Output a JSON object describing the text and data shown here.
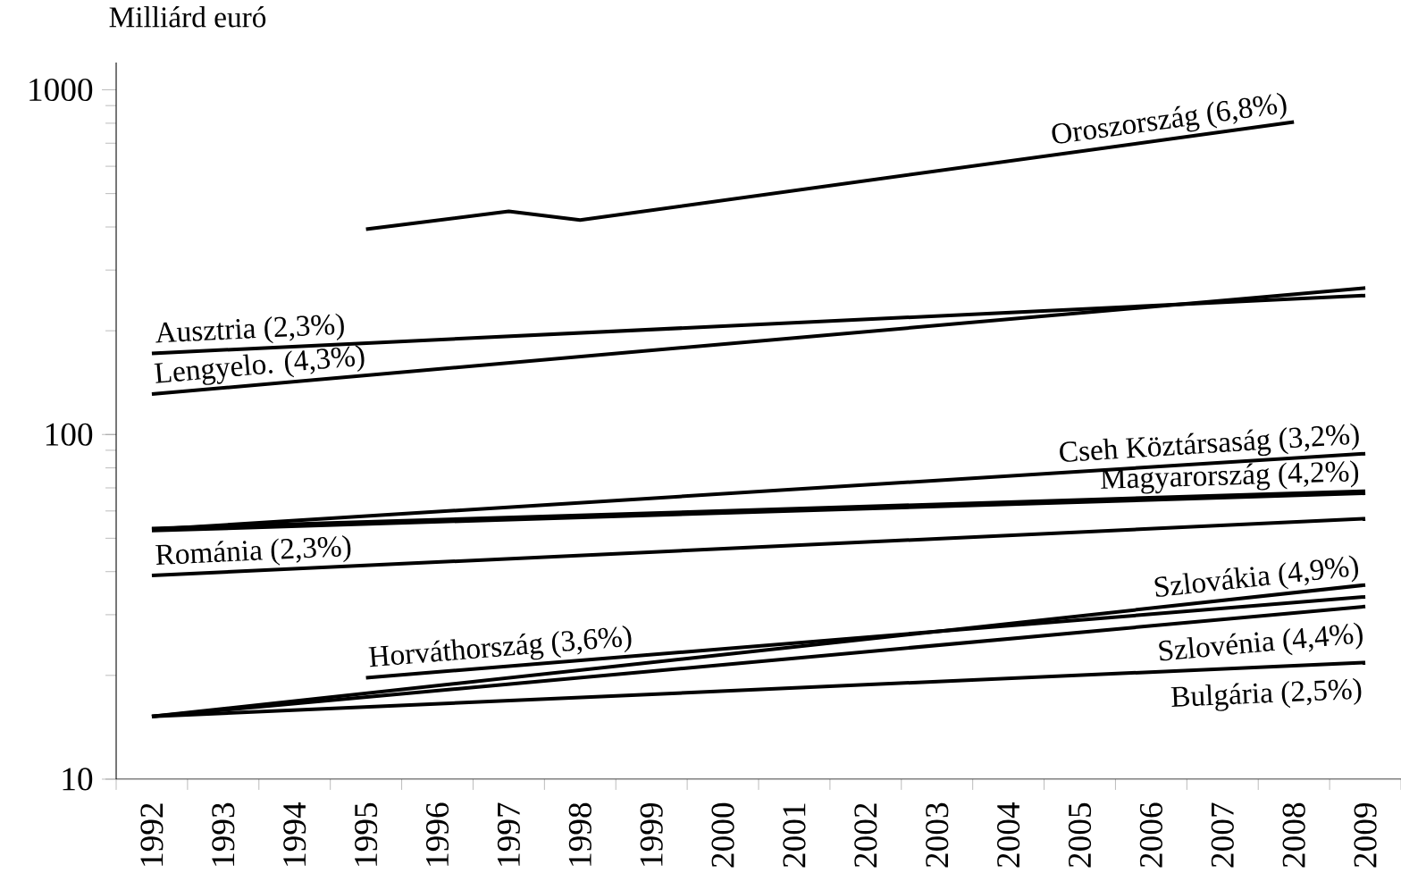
{
  "chart_data": {
    "type": "line",
    "ylabel": "Milliárd euró",
    "log": "y",
    "xlim": [
      1991.5,
      2009.5
    ],
    "xticks": [
      1992,
      1993,
      1994,
      1995,
      1996,
      1997,
      1998,
      1999,
      2000,
      2001,
      2002,
      2003,
      2004,
      2005,
      2006,
      2007,
      2008,
      2009
    ],
    "ylim": [
      10,
      1200
    ],
    "yticks": [
      10,
      100,
      1000
    ],
    "series": [
      {
        "name": "Oroszország (6,8%)",
        "color": "#000000",
        "x": [
          1995,
          1997,
          1998,
          2008
        ],
        "values": [
          394,
          444,
          419,
          807
        ]
      },
      {
        "name": "Ausztria (2,3%)",
        "color": "#000000",
        "x": [
          1992,
          2009
        ],
        "values": [
          172,
          253
        ]
      },
      {
        "name": "Lengyelo. (4,3%)",
        "color": "#000000",
        "x": [
          1992,
          2009
        ],
        "values": [
          131,
          266
        ]
      },
      {
        "name": "Cseh Köztársaság (3,2%)",
        "color": "#000000",
        "x": [
          1992,
          2009
        ],
        "values": [
          53,
          88
        ]
      },
      {
        "name": "Magyarország (4,2%)",
        "color": "#000000",
        "x": [
          1992,
          2009
        ],
        "values": [
          53,
          68
        ]
      },
      {
        "name": "Románia (2,3%)",
        "color": "#000000",
        "x": [
          1992,
          2009
        ],
        "values": [
          39,
          57
        ]
      },
      {
        "name": "Horváthország (3,6%)",
        "color": "#000000",
        "x": [
          1995,
          2009
        ],
        "values": [
          19.7,
          33.8
        ]
      },
      {
        "name": "Szlovákia (4,9%)",
        "color": "#000000",
        "x": [
          1992,
          2009
        ],
        "values": [
          15.2,
          36.6
        ]
      },
      {
        "name": "Szlovénia (4,4%)",
        "color": "#000000",
        "x": [
          1992,
          2009
        ],
        "values": [
          15.2,
          31.7
        ]
      },
      {
        "name": "Bulgária (2,5%)",
        "color": "#000000",
        "x": [
          1992,
          2009
        ],
        "values": [
          15.2,
          21.8
        ]
      }
    ]
  }
}
